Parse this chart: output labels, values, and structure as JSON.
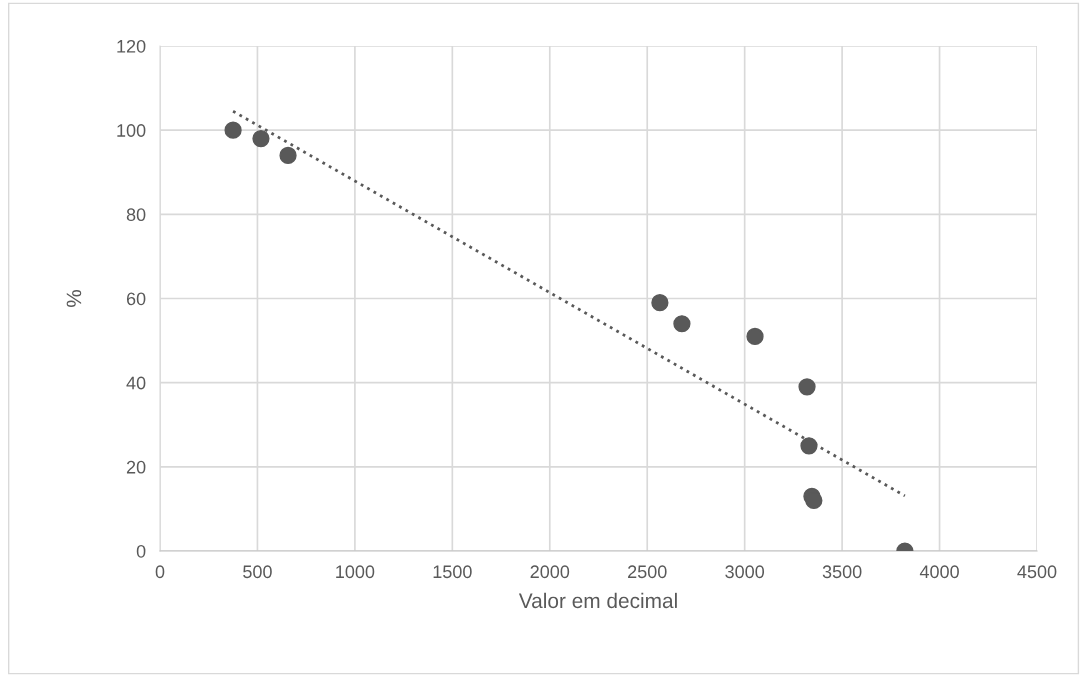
{
  "chart_data": {
    "type": "scatter",
    "xlabel": "Valor em decimal",
    "ylabel": "%",
    "xlim": [
      0,
      4500
    ],
    "xticks": [
      0,
      500,
      1000,
      1500,
      2000,
      2500,
      3000,
      3500,
      4000,
      4500
    ],
    "ylim": [
      0,
      120
    ],
    "yticks": [
      0,
      20,
      40,
      60,
      80,
      100,
      120
    ],
    "grid": true,
    "marker": "circle",
    "series": [
      {
        "color": "#595959",
        "x": [
          375,
          518,
          657,
          2565,
          2678,
          3053,
          3320,
          3330,
          3345,
          3355,
          3822
        ],
        "values": [
          100,
          98,
          94,
          59,
          54,
          51,
          39,
          25,
          13,
          12,
          0
        ]
      },
      {
        "type": "line",
        "color": "#595959",
        "line_style": "dotted",
        "marker": "none",
        "x": [
          375,
          3822
        ],
        "values": [
          104.5,
          13.1
        ]
      }
    ]
  }
}
